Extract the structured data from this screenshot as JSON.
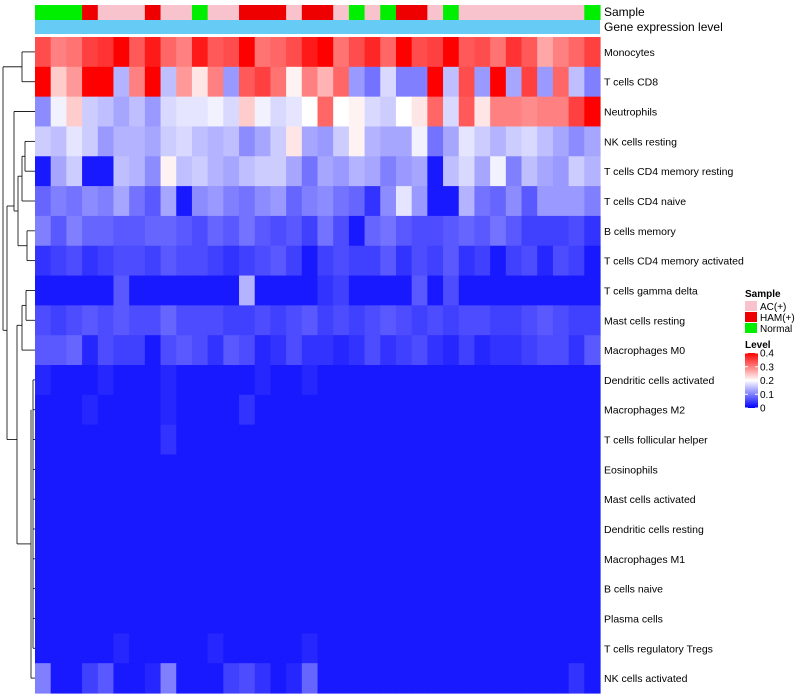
{
  "chart_data": {
    "type": "heatmap",
    "title": "",
    "xlabel": "",
    "ylabel": "",
    "annotation_labels": [
      "Sample",
      "Gene expression level"
    ],
    "rows": [
      "Monocytes",
      "T cells CD8",
      "Neutrophils",
      "NK cells resting",
      "T cells CD4 memory resting",
      "T cells CD4 naive",
      "B cells memory",
      "T cells CD4 memory activated",
      "T cells gamma delta",
      "Mast cells resting",
      "Macrophages M0",
      "Dendritic cells activated",
      "Macrophages M2",
      "T cells follicular helper",
      "Eosinophils",
      "Mast cells activated",
      "Dendritic cells resting",
      "Macrophages M1",
      "B cells naive",
      "Plasma cells",
      "T cells regulatory  Tregs",
      "NK cells activated"
    ],
    "sample_groups": [
      "N",
      "N",
      "N",
      "H",
      "A",
      "A",
      "A",
      "H",
      "A",
      "A",
      "N",
      "A",
      "A",
      "H",
      "H",
      "H",
      "A",
      "H",
      "H",
      "A",
      "N",
      "A",
      "N",
      "H",
      "H",
      "A",
      "N",
      "A",
      "A",
      "A",
      "A",
      "A",
      "A",
      "A",
      "A",
      "N"
    ],
    "values": [
      [
        0.34,
        0.3,
        0.31,
        0.35,
        0.36,
        0.4,
        0.33,
        0.38,
        0.32,
        0.3,
        0.38,
        0.33,
        0.34,
        0.4,
        0.31,
        0.32,
        0.34,
        0.38,
        0.4,
        0.31,
        0.34,
        0.37,
        0.32,
        0.4,
        0.34,
        0.35,
        0.4,
        0.33,
        0.34,
        0.31,
        0.36,
        0.33,
        0.27,
        0.3,
        0.32,
        0.35
      ],
      [
        0.4,
        0.24,
        0.28,
        0.45,
        0.45,
        0.14,
        0.3,
        0.43,
        0.15,
        0.28,
        0.22,
        0.3,
        0.12,
        0.33,
        0.35,
        0.31,
        0.21,
        0.3,
        0.26,
        0.32,
        0.12,
        0.09,
        0.17,
        0.1,
        0.1,
        0.42,
        0.15,
        0.34,
        0.12,
        0.4,
        0.13,
        0.35,
        0.12,
        0.32,
        0.15,
        0.1
      ],
      [
        0.11,
        0.19,
        0.24,
        0.16,
        0.15,
        0.13,
        0.15,
        0.12,
        0.17,
        0.18,
        0.18,
        0.19,
        0.17,
        0.24,
        0.19,
        0.17,
        0.18,
        0.2,
        0.32,
        0.2,
        0.21,
        0.17,
        0.16,
        0.2,
        0.22,
        0.32,
        0.17,
        0.33,
        0.22,
        0.3,
        0.3,
        0.29,
        0.3,
        0.3,
        0.35,
        0.4
      ],
      [
        0.16,
        0.15,
        0.18,
        0.16,
        0.12,
        0.14,
        0.14,
        0.13,
        0.16,
        0.17,
        0.15,
        0.14,
        0.15,
        0.11,
        0.13,
        0.16,
        0.22,
        0.13,
        0.12,
        0.16,
        0.21,
        0.14,
        0.13,
        0.13,
        0.19,
        0.09,
        0.13,
        0.18,
        0.16,
        0.14,
        0.16,
        0.17,
        0.15,
        0.13,
        0.11,
        0.13
      ],
      [
        0.02,
        0.13,
        0.16,
        0.02,
        0.02,
        0.15,
        0.14,
        0.11,
        0.21,
        0.15,
        0.16,
        0.14,
        0.13,
        0.15,
        0.16,
        0.16,
        0.13,
        0.09,
        0.13,
        0.12,
        0.14,
        0.13,
        0.1,
        0.12,
        0.13,
        0.02,
        0.15,
        0.17,
        0.13,
        0.19,
        0.1,
        0.15,
        0.13,
        0.12,
        0.16,
        0.14
      ],
      [
        0.08,
        0.1,
        0.09,
        0.11,
        0.1,
        0.13,
        0.09,
        0.07,
        0.13,
        0.02,
        0.11,
        0.12,
        0.1,
        0.09,
        0.11,
        0.12,
        0.08,
        0.1,
        0.11,
        0.09,
        0.08,
        0.04,
        0.11,
        0.18,
        0.12,
        0.02,
        0.02,
        0.14,
        0.09,
        0.08,
        0.11,
        0.07,
        0.12,
        0.12,
        0.12,
        0.1
      ],
      [
        0.1,
        0.07,
        0.1,
        0.08,
        0.08,
        0.07,
        0.07,
        0.08,
        0.08,
        0.07,
        0.06,
        0.08,
        0.07,
        0.09,
        0.07,
        0.06,
        0.07,
        0.05,
        0.09,
        0.06,
        0.02,
        0.08,
        0.09,
        0.07,
        0.06,
        0.06,
        0.07,
        0.08,
        0.07,
        0.09,
        0.07,
        0.05,
        0.05,
        0.05,
        0.06,
        0.04
      ],
      [
        0.04,
        0.05,
        0.06,
        0.04,
        0.05,
        0.06,
        0.06,
        0.05,
        0.07,
        0.06,
        0.06,
        0.05,
        0.04,
        0.05,
        0.06,
        0.07,
        0.05,
        0.02,
        0.05,
        0.06,
        0.05,
        0.05,
        0.07,
        0.04,
        0.06,
        0.05,
        0.07,
        0.04,
        0.05,
        0.02,
        0.05,
        0.06,
        0.03,
        0.06,
        0.05,
        0.02
      ],
      [
        0.02,
        0.02,
        0.02,
        0.02,
        0.02,
        0.07,
        0.02,
        0.02,
        0.02,
        0.02,
        0.02,
        0.02,
        0.02,
        0.14,
        0.02,
        0.02,
        0.02,
        0.02,
        0.04,
        0.05,
        0.02,
        0.02,
        0.02,
        0.02,
        0.07,
        0.02,
        0.06,
        0.02,
        0.02,
        0.02,
        0.02,
        0.02,
        0.02,
        0.02,
        0.02,
        0.02
      ],
      [
        0.06,
        0.05,
        0.06,
        0.07,
        0.06,
        0.07,
        0.06,
        0.06,
        0.08,
        0.06,
        0.06,
        0.06,
        0.05,
        0.05,
        0.06,
        0.05,
        0.06,
        0.07,
        0.05,
        0.06,
        0.05,
        0.06,
        0.07,
        0.06,
        0.05,
        0.06,
        0.05,
        0.06,
        0.06,
        0.05,
        0.05,
        0.06,
        0.07,
        0.06,
        0.05,
        0.05
      ],
      [
        0.07,
        0.07,
        0.08,
        0.03,
        0.06,
        0.05,
        0.05,
        0.02,
        0.06,
        0.07,
        0.06,
        0.04,
        0.07,
        0.06,
        0.03,
        0.04,
        0.06,
        0.04,
        0.04,
        0.03,
        0.04,
        0.06,
        0.04,
        0.05,
        0.06,
        0.04,
        0.03,
        0.05,
        0.03,
        0.04,
        0.04,
        0.05,
        0.06,
        0.06,
        0.04,
        0.07
      ],
      [
        0.03,
        0.02,
        0.02,
        0.02,
        0.03,
        0.02,
        0.02,
        0.02,
        0.03,
        0.02,
        0.02,
        0.02,
        0.02,
        0.02,
        0.03,
        0.02,
        0.02,
        0.03,
        0.02,
        0.02,
        0.02,
        0.02,
        0.02,
        0.02,
        0.02,
        0.02,
        0.02,
        0.02,
        0.02,
        0.02,
        0.02,
        0.02,
        0.02,
        0.02,
        0.02,
        0.02
      ],
      [
        0.02,
        0.02,
        0.02,
        0.03,
        0.02,
        0.02,
        0.02,
        0.02,
        0.03,
        0.02,
        0.02,
        0.02,
        0.02,
        0.04,
        0.02,
        0.02,
        0.02,
        0.02,
        0.02,
        0.02,
        0.02,
        0.02,
        0.02,
        0.02,
        0.02,
        0.02,
        0.02,
        0.02,
        0.02,
        0.02,
        0.02,
        0.02,
        0.02,
        0.02,
        0.02,
        0.02
      ],
      [
        0.02,
        0.02,
        0.02,
        0.02,
        0.02,
        0.02,
        0.02,
        0.02,
        0.04,
        0.02,
        0.02,
        0.02,
        0.02,
        0.02,
        0.02,
        0.02,
        0.02,
        0.02,
        0.02,
        0.02,
        0.02,
        0.02,
        0.02,
        0.02,
        0.02,
        0.02,
        0.02,
        0.02,
        0.02,
        0.02,
        0.02,
        0.02,
        0.02,
        0.02,
        0.02,
        0.02
      ],
      [
        0.02,
        0.02,
        0.02,
        0.02,
        0.02,
        0.02,
        0.02,
        0.02,
        0.02,
        0.02,
        0.02,
        0.02,
        0.02,
        0.02,
        0.02,
        0.02,
        0.02,
        0.02,
        0.02,
        0.02,
        0.02,
        0.02,
        0.02,
        0.02,
        0.02,
        0.02,
        0.02,
        0.02,
        0.02,
        0.02,
        0.02,
        0.02,
        0.02,
        0.02,
        0.02,
        0.02
      ],
      [
        0.02,
        0.02,
        0.02,
        0.02,
        0.02,
        0.02,
        0.02,
        0.02,
        0.02,
        0.02,
        0.02,
        0.02,
        0.02,
        0.02,
        0.02,
        0.02,
        0.02,
        0.02,
        0.02,
        0.02,
        0.02,
        0.02,
        0.02,
        0.02,
        0.02,
        0.02,
        0.02,
        0.02,
        0.02,
        0.02,
        0.02,
        0.02,
        0.02,
        0.02,
        0.02,
        0.02
      ],
      [
        0.02,
        0.02,
        0.02,
        0.02,
        0.02,
        0.02,
        0.02,
        0.02,
        0.02,
        0.02,
        0.02,
        0.02,
        0.02,
        0.02,
        0.02,
        0.02,
        0.02,
        0.02,
        0.02,
        0.02,
        0.02,
        0.02,
        0.02,
        0.02,
        0.02,
        0.02,
        0.02,
        0.02,
        0.02,
        0.02,
        0.02,
        0.02,
        0.02,
        0.02,
        0.02,
        0.02
      ],
      [
        0.02,
        0.02,
        0.02,
        0.02,
        0.02,
        0.02,
        0.02,
        0.02,
        0.02,
        0.02,
        0.02,
        0.02,
        0.02,
        0.02,
        0.02,
        0.02,
        0.02,
        0.02,
        0.02,
        0.02,
        0.02,
        0.02,
        0.02,
        0.02,
        0.02,
        0.02,
        0.02,
        0.02,
        0.02,
        0.02,
        0.02,
        0.02,
        0.02,
        0.02,
        0.02,
        0.02
      ],
      [
        0.02,
        0.02,
        0.02,
        0.02,
        0.02,
        0.02,
        0.02,
        0.02,
        0.02,
        0.02,
        0.02,
        0.02,
        0.02,
        0.02,
        0.02,
        0.02,
        0.02,
        0.02,
        0.02,
        0.02,
        0.02,
        0.02,
        0.02,
        0.02,
        0.02,
        0.02,
        0.02,
        0.02,
        0.02,
        0.02,
        0.02,
        0.02,
        0.02,
        0.02,
        0.02,
        0.02
      ],
      [
        0.02,
        0.02,
        0.02,
        0.02,
        0.02,
        0.02,
        0.02,
        0.02,
        0.02,
        0.02,
        0.02,
        0.02,
        0.02,
        0.02,
        0.02,
        0.02,
        0.02,
        0.02,
        0.02,
        0.02,
        0.02,
        0.02,
        0.02,
        0.02,
        0.02,
        0.02,
        0.02,
        0.02,
        0.02,
        0.02,
        0.02,
        0.02,
        0.02,
        0.02,
        0.02,
        0.02
      ],
      [
        0.02,
        0.02,
        0.02,
        0.02,
        0.02,
        0.03,
        0.02,
        0.02,
        0.02,
        0.02,
        0.02,
        0.03,
        0.02,
        0.02,
        0.02,
        0.02,
        0.02,
        0.03,
        0.02,
        0.02,
        0.02,
        0.02,
        0.02,
        0.02,
        0.02,
        0.02,
        0.02,
        0.02,
        0.02,
        0.02,
        0.02,
        0.02,
        0.02,
        0.02,
        0.02,
        0.02
      ],
      [
        0.1,
        0.02,
        0.02,
        0.05,
        0.07,
        0.02,
        0.02,
        0.03,
        0.1,
        0.02,
        0.02,
        0.02,
        0.05,
        0.06,
        0.04,
        0.02,
        0.03,
        0.08,
        0.02,
        0.02,
        0.02,
        0.02,
        0.02,
        0.02,
        0.02,
        0.02,
        0.02,
        0.02,
        0.02,
        0.02,
        0.02,
        0.02,
        0.02,
        0.02,
        0.04,
        0.02
      ]
    ],
    "legend": {
      "sample_title": "Sample",
      "groups": [
        {
          "key": "A",
          "label": "AC(+)",
          "color": "#f9c3cd"
        },
        {
          "key": "H",
          "label": "HAM(+)",
          "color": "#ee0000"
        },
        {
          "key": "N",
          "label": "Normal",
          "color": "#00ee00"
        }
      ],
      "level_title": "Level",
      "level_ticks": [
        0.4,
        0.3,
        0.2,
        0.1,
        0
      ],
      "level_tick_labels": [
        "0.4",
        "0.3",
        "0.2",
        "0.1",
        "0"
      ],
      "level_range": [
        0,
        0.4
      ]
    },
    "colors": {
      "low": "#0000ff",
      "mid": "#ffffff",
      "high": "#ff0000",
      "expression_bar": "#66ccf5"
    }
  }
}
